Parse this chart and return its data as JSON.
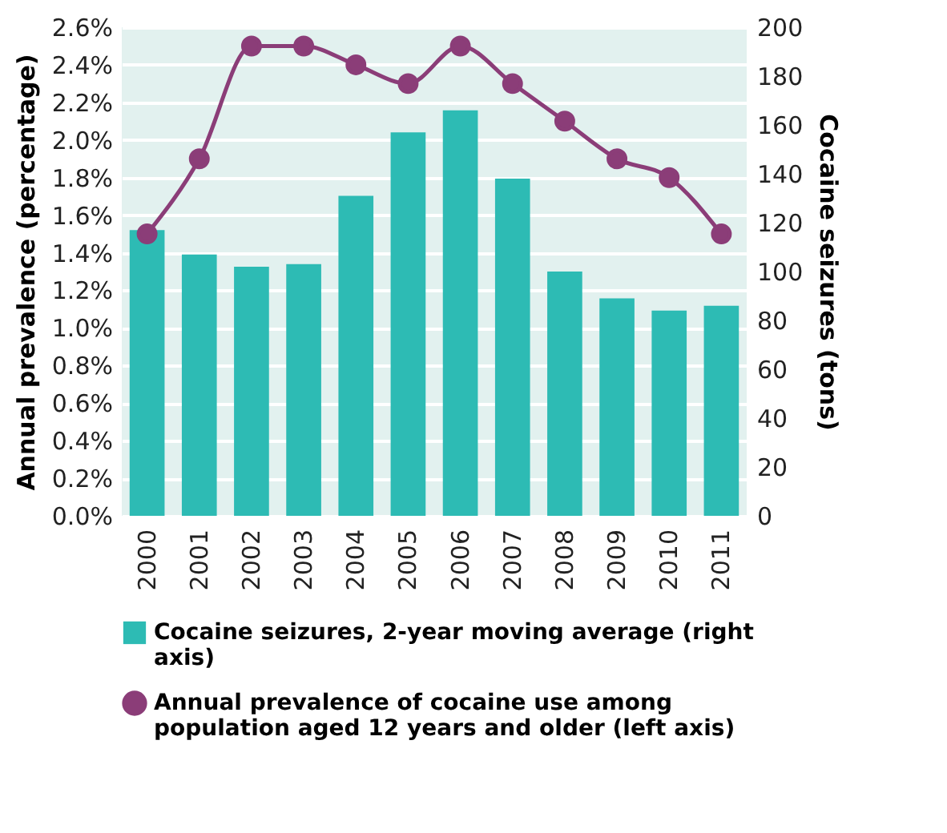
{
  "chart_data": {
    "type": "bar",
    "ylabel": "Annual prevalence (percentage)",
    "y2label": "Cocaine seizures (tons)",
    "categories": [
      "2000",
      "2001",
      "2002",
      "2003",
      "2004",
      "2005",
      "2006",
      "2007",
      "2008",
      "2009",
      "2010",
      "2011"
    ],
    "series": [
      {
        "name": "Cocaine seizures, 2-year moving average (right axis)",
        "axis": "y2",
        "color": "#2dbbb4",
        "values": [
          117,
          107,
          102,
          103,
          131,
          157,
          166,
          138,
          100,
          89,
          84,
          86
        ]
      },
      {
        "name": "Annual prevalence of cocaine use among population aged 12 years and older (left axis)",
        "type": "line",
        "axis": "y",
        "color": "#8b3d78",
        "marker": "circle",
        "values": [
          1.5,
          1.9,
          2.5,
          2.5,
          2.4,
          2.3,
          2.5,
          2.3,
          2.1,
          1.9,
          1.8,
          1.5
        ]
      }
    ],
    "ylim": [
      0,
      2.6
    ],
    "yticks": [
      {
        "value": 0,
        "label": "0.0%"
      },
      {
        "value": 0.2,
        "label": "0.2%"
      },
      {
        "value": 0.4,
        "label": "0.4%"
      },
      {
        "value": 0.6,
        "label": "0.6%"
      },
      {
        "value": 0.8,
        "label": "0.8%"
      },
      {
        "value": 1.0,
        "label": "1.0%"
      },
      {
        "value": 1.2,
        "label": "1.2%"
      },
      {
        "value": 1.4,
        "label": "1.4%"
      },
      {
        "value": 1.6,
        "label": "1.6%"
      },
      {
        "value": 1.8,
        "label": "1.8%"
      },
      {
        "value": 2.0,
        "label": "2.0%"
      },
      {
        "value": 2.2,
        "label": "2.2%"
      },
      {
        "value": 2.4,
        "label": "2.4%"
      },
      {
        "value": 2.6,
        "label": "2.6%"
      }
    ],
    "y2lim": [
      0,
      200
    ],
    "y2ticks": [
      0,
      20,
      40,
      60,
      80,
      100,
      120,
      140,
      160,
      180,
      200
    ],
    "grid": "y",
    "legend": "bottom"
  }
}
